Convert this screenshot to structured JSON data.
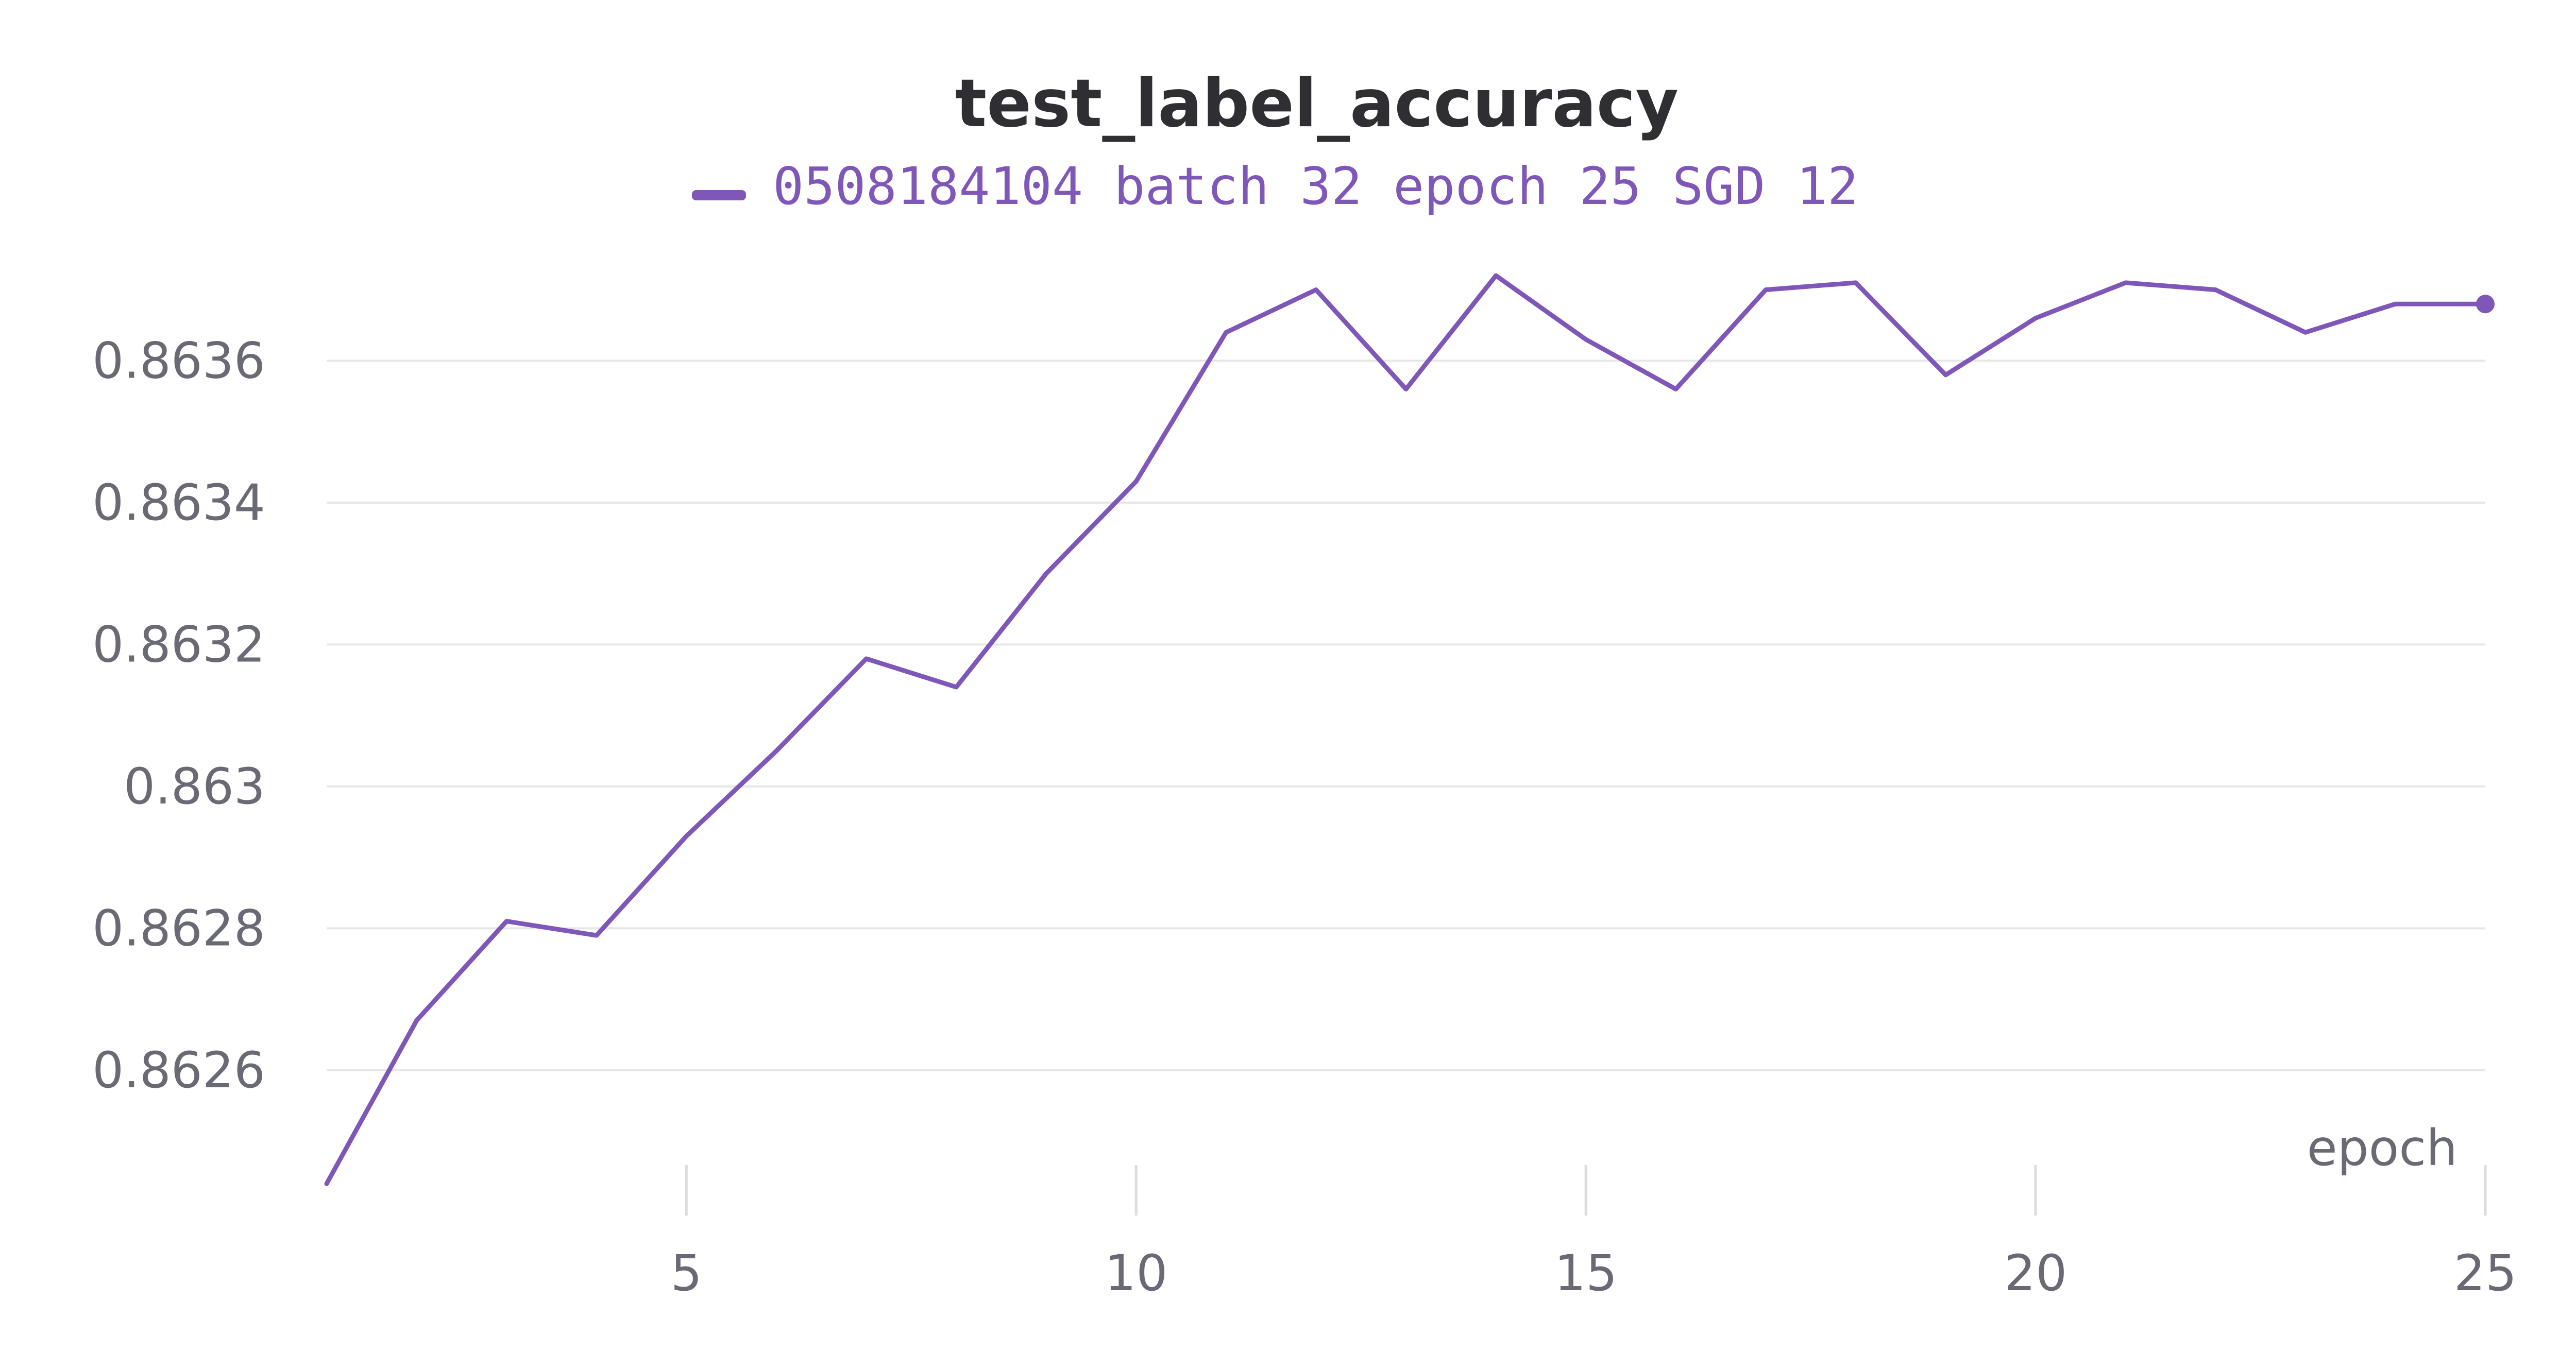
{
  "chart_data": {
    "type": "line",
    "title": "test_label_accuracy",
    "xlabel": "epoch",
    "ylabel": "",
    "x": [
      1,
      2,
      3,
      4,
      5,
      6,
      7,
      8,
      9,
      10,
      11,
      12,
      13,
      14,
      15,
      16,
      17,
      18,
      19,
      20,
      21,
      22,
      23,
      24,
      25
    ],
    "series": [
      {
        "name": "0508184104 batch 32 epoch 25 SGD 12",
        "color": "#7e57b8",
        "values": [
          0.86244,
          0.86267,
          0.86281,
          0.86279,
          0.86293,
          0.86305,
          0.86318,
          0.86314,
          0.8633,
          0.86343,
          0.86364,
          0.8637,
          0.86356,
          0.86372,
          0.86363,
          0.86356,
          0.8637,
          0.86371,
          0.86358,
          0.86366,
          0.86371,
          0.8637,
          0.86364,
          0.86368,
          0.86368
        ]
      }
    ],
    "xticks": [
      5,
      10,
      15,
      20,
      25
    ],
    "xtick_labels": [
      "5",
      "10",
      "15",
      "20",
      "25"
    ],
    "yticks": [
      0.8626,
      0.8628,
      0.863,
      0.8632,
      0.8634,
      0.8636
    ],
    "ytick_labels": [
      "0.8626",
      "0.8628",
      "0.863",
      "0.8632",
      "0.8634",
      "0.8636"
    ],
    "xlim": [
      1,
      25
    ],
    "ylim": [
      0.86243,
      0.86376
    ],
    "grid": true,
    "legend_position": "top-center",
    "end_marker": true
  }
}
